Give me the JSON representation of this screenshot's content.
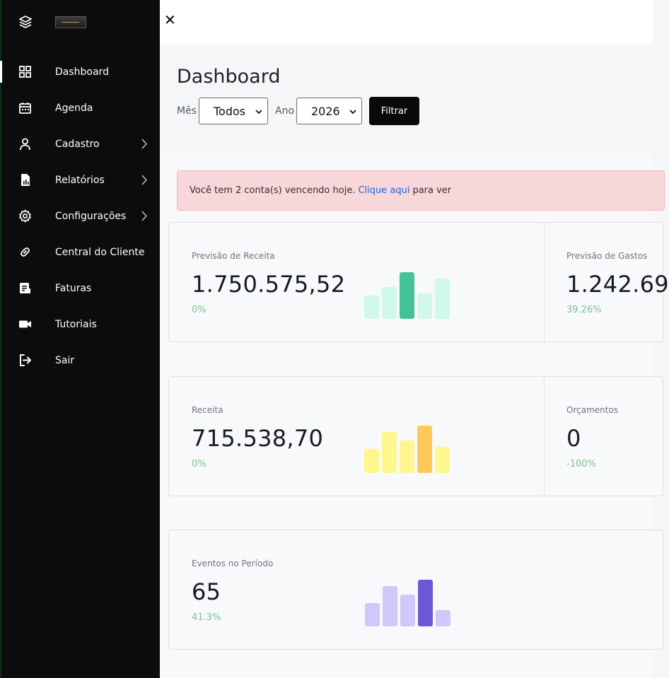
{
  "sidebar": {
    "items": [
      {
        "label": "Dashboard",
        "icon": "grid-icon",
        "active": true,
        "has_submenu": false
      },
      {
        "label": "Agenda",
        "icon": "calendar-icon",
        "active": false,
        "has_submenu": false
      },
      {
        "label": "Cadastro",
        "icon": "user-icon",
        "active": false,
        "has_submenu": true
      },
      {
        "label": "Relatórios",
        "icon": "report-icon",
        "active": false,
        "has_submenu": true
      },
      {
        "label": "Configurações",
        "icon": "gear-icon",
        "active": false,
        "has_submenu": true
      },
      {
        "label": "Central do Cliente",
        "icon": "link-icon",
        "active": false,
        "has_submenu": false
      },
      {
        "label": "Faturas",
        "icon": "invoice-icon",
        "active": false,
        "has_submenu": false
      },
      {
        "label": "Tutoriais",
        "icon": "video-camera-icon",
        "active": false,
        "has_submenu": false
      },
      {
        "label": "Sair",
        "icon": "logout-icon",
        "active": false,
        "has_submenu": false
      }
    ]
  },
  "topbar": {
    "close_label": "✕"
  },
  "header": {
    "title": "Dashboard",
    "month_label": "Mês",
    "month_value": "Todos",
    "year_label": "Ano",
    "year_value": "2026",
    "filter_button": "Filtrar"
  },
  "alert": {
    "text_before": "Você tem 2 conta(s) vencendo hoje.",
    "link_text": "Clique aqui",
    "text_after": "para ver"
  },
  "cards": {
    "previsao_receita": {
      "label": "Previsão de Receita",
      "value": "1.750.575,52",
      "change": "0%"
    },
    "previsao_gastos": {
      "label": "Previsão de Gastos",
      "value": "1.242.69",
      "change": "39.26%"
    },
    "receita": {
      "label": "Receita",
      "value": "715.538,70",
      "change": "0%"
    },
    "orcamentos": {
      "label": "Orçamentos",
      "value": "0",
      "change": "-100%"
    },
    "eventos": {
      "label": "Eventos no Período",
      "value": "65",
      "change": "41.3%"
    }
  },
  "colors": {
    "green_light": "#d1f8ec",
    "green_dark": "#45c396",
    "yellow_light": "#fff68f",
    "yellow_dark": "#ffc95a",
    "purple_light": "#cfc8fa",
    "purple_dark": "#6c58d4",
    "positive": "#7ec28e"
  }
}
